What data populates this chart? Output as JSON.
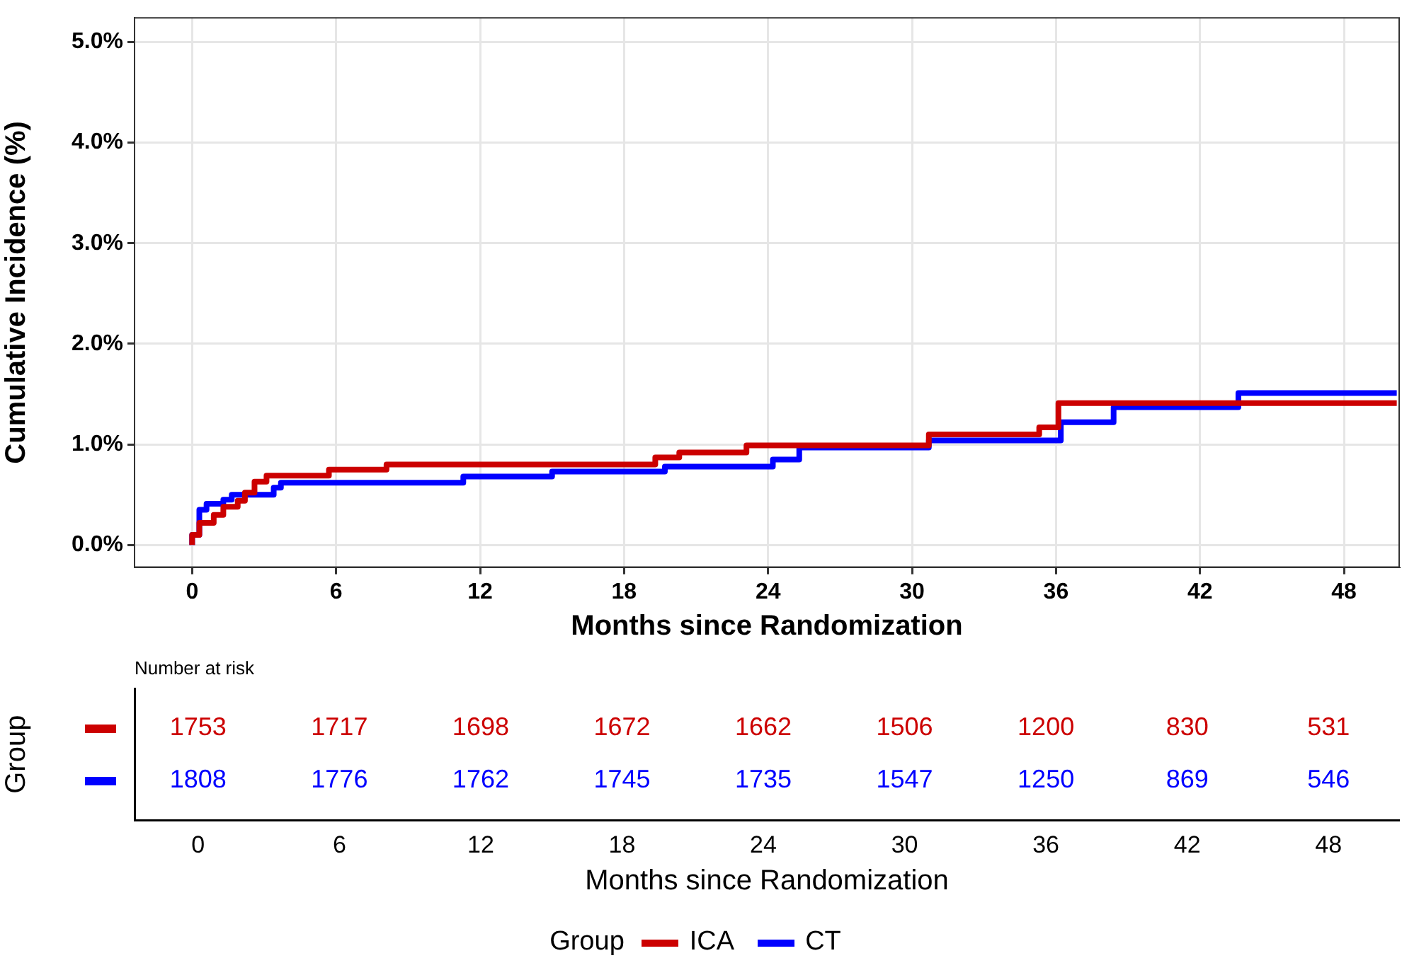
{
  "chart_data": [
    {
      "type": "step",
      "xlabel": "Months since Randomization",
      "ylabel": "Cumulative Incidence (%)",
      "xlim": [
        -2.4,
        50.3
      ],
      "ylim": [
        -0.22,
        5.24
      ],
      "xticks": [
        0,
        6,
        12,
        18,
        24,
        30,
        36,
        42,
        48
      ],
      "yticks": [
        {
          "value": 0,
          "label": "0.0%"
        },
        {
          "value": 1,
          "label": "1.0%"
        },
        {
          "value": 2,
          "label": "2.0%"
        },
        {
          "value": 3,
          "label": "3.0%"
        },
        {
          "value": 4,
          "label": "4.0%"
        },
        {
          "value": 5,
          "label": "5.0%"
        }
      ],
      "grid": true,
      "legend": "bottom",
      "legend_title": "Group",
      "series": [
        {
          "name": "ICA",
          "color": "#cc0000",
          "x": [
            0,
            0.3,
            0.9,
            1.3,
            1.9,
            2.2,
            2.6,
            3.1,
            5.7,
            8.1,
            19.3,
            20.3,
            23.1,
            30.7,
            35.3,
            36.1,
            50.2
          ],
          "values": [
            0,
            0.1,
            0.22,
            0.3,
            0.38,
            0.44,
            0.52,
            0.63,
            0.69,
            0.75,
            0.8,
            0.87,
            0.92,
            0.99,
            1.1,
            1.17,
            1.41
          ]
        },
        {
          "name": "CT",
          "color": "#0000ff",
          "x": [
            0,
            0.3,
            0.6,
            1.3,
            1.65,
            3.4,
            3.7,
            11.3,
            15,
            19.7,
            24.2,
            25.3,
            30.7,
            36.2,
            38.4,
            43.6,
            45.4,
            50.2
          ],
          "values": [
            0,
            0.1,
            0.35,
            0.41,
            0.45,
            0.5,
            0.57,
            0.62,
            0.68,
            0.73,
            0.78,
            0.85,
            0.97,
            1.04,
            1.22,
            1.37,
            1.51,
            1.51
          ]
        }
      ]
    },
    {
      "type": "heatmap",
      "title": "Number at risk",
      "xlabel": "Months since Randomization",
      "ylabel": "Group",
      "categories": [
        "0",
        "6",
        "12",
        "18",
        "24",
        "30",
        "36",
        "42",
        "48"
      ],
      "y_categories": [
        null,
        null
      ],
      "data_labels": true,
      "colors": [
        "#cc0000",
        "#0000ff"
      ],
      "cells": [
        [
          1753,
          1717,
          1698,
          1672,
          1662,
          1506,
          1200,
          830,
          531
        ],
        [
          1808,
          1776,
          1762,
          1745,
          1735,
          1547,
          1250,
          869,
          546
        ]
      ]
    }
  ]
}
